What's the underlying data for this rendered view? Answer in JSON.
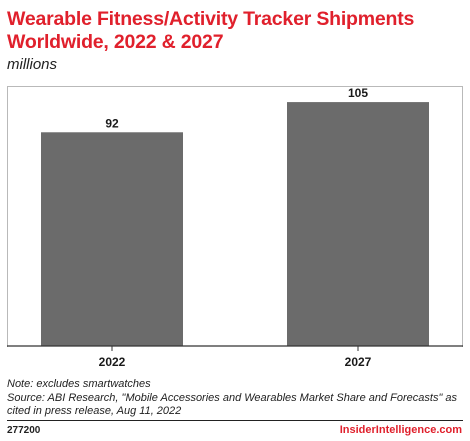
{
  "title": "Wearable Fitness/Activity Tracker Shipments Worldwide, 2022 & 2027",
  "subtitle": "millions",
  "note": "Note: excludes smartwatches",
  "source": "Source: ABI Research, \"Mobile Accessories and Wearables Market Share and Forecasts\" as cited in press release, Aug 11, 2022",
  "footer_id": "277200",
  "brand": "InsiderIntelligence.com",
  "colors": {
    "bar": "#6b6b6b",
    "title": "#e0202c",
    "axis": "#333333"
  },
  "chart_data": {
    "type": "bar",
    "categories": [
      "2022",
      "2027"
    ],
    "values": [
      92,
      105
    ],
    "data_labels": [
      "92",
      "105"
    ],
    "title": "Wearable Fitness/Activity Tracker Shipments Worldwide, 2022 & 2027",
    "xlabel": "",
    "ylabel": "",
    "ylim": [
      0,
      115
    ],
    "grid": false,
    "legend": "none"
  }
}
